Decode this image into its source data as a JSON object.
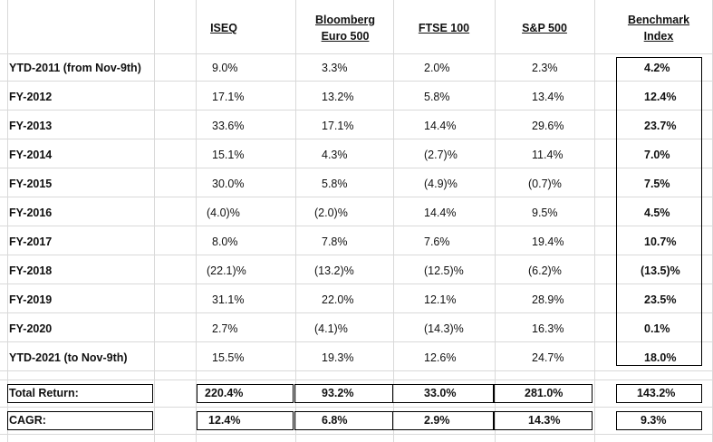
{
  "headers": {
    "iseq": [
      "ISEQ"
    ],
    "bloomberg": [
      "Bloomberg",
      "Euro 500"
    ],
    "ftse": [
      "FTSE 100"
    ],
    "sp": [
      "S&P 500"
    ],
    "benchmark": [
      "Benchmark",
      "Index"
    ]
  },
  "rows": [
    {
      "label": "YTD-2011 (from Nov-9th)",
      "iseq": "9.0%",
      "bloomberg": "3.3%",
      "ftse": "2.0%",
      "sp": "2.3%",
      "benchmark": "4.2%"
    },
    {
      "label": "FY-2012",
      "iseq": "17.1%",
      "bloomberg": "13.2%",
      "ftse": "5.8%",
      "sp": "13.4%",
      "benchmark": "12.4%"
    },
    {
      "label": "FY-2013",
      "iseq": "33.6%",
      "bloomberg": "17.1%",
      "ftse": "14.4%",
      "sp": "29.6%",
      "benchmark": "23.7%"
    },
    {
      "label": "FY-2014",
      "iseq": "15.1%",
      "bloomberg": "4.3%",
      "ftse": "(2.7)%",
      "sp": "11.4%",
      "benchmark": "7.0%"
    },
    {
      "label": "FY-2015",
      "iseq": "30.0%",
      "bloomberg": "5.8%",
      "ftse": "(4.9)%",
      "sp": "(0.7)%",
      "benchmark": "7.5%"
    },
    {
      "label": "FY-2016",
      "iseq": "(4.0)%",
      "bloomberg": "(2.0)%",
      "ftse": "14.4%",
      "sp": "9.5%",
      "benchmark": "4.5%"
    },
    {
      "label": "FY-2017",
      "iseq": "8.0%",
      "bloomberg": "7.8%",
      "ftse": "7.6%",
      "sp": "19.4%",
      "benchmark": "10.7%"
    },
    {
      "label": "FY-2018",
      "iseq": "(22.1)%",
      "bloomberg": "(13.2)%",
      "ftse": "(12.5)%",
      "sp": "(6.2)%",
      "benchmark": "(13.5)%"
    },
    {
      "label": "FY-2019",
      "iseq": "31.1%",
      "bloomberg": "22.0%",
      "ftse": "12.1%",
      "sp": "28.9%",
      "benchmark": "23.5%"
    },
    {
      "label": "FY-2020",
      "iseq": "2.7%",
      "bloomberg": "(4.1)%",
      "ftse": "(14.3)%",
      "sp": "16.3%",
      "benchmark": "0.1%"
    },
    {
      "label": "YTD-2021 (to Nov-9th)",
      "iseq": "15.5%",
      "bloomberg": "19.3%",
      "ftse": "12.6%",
      "sp": "24.7%",
      "benchmark": "18.0%"
    }
  ],
  "totals": [
    {
      "label": "Total Return:",
      "iseq": "220.4%",
      "bloomberg": "93.2%",
      "ftse": "33.0%",
      "sp": "281.0%",
      "benchmark": "143.2%"
    },
    {
      "label": "CAGR:",
      "iseq": "12.4%",
      "bloomberg": "6.8%",
      "ftse": "2.9%",
      "sp": "14.3%",
      "benchmark": "9.3%"
    }
  ]
}
